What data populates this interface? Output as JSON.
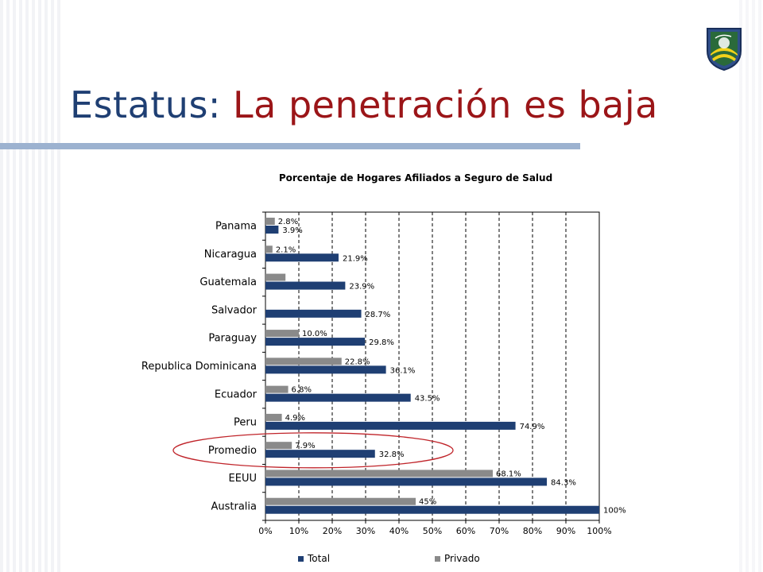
{
  "slide": {
    "title_prefix": "Estatus:",
    "title_main": "La penetración es baja",
    "colors": {
      "title_prefix": "#1f3f73",
      "title_main": "#9b1518",
      "rule": "#9cb2d0",
      "highlight_oval": "#c0242a"
    },
    "logo_icon": "shield-globe-logo"
  },
  "chart_data": {
    "type": "bar",
    "orientation": "horizontal",
    "title": "Porcentaje de Hogares Afiliados a Seguro de Salud",
    "categories": [
      "Panama",
      "Nicaragua",
      "Guatemala",
      "Salvador",
      "Paraguay",
      "Republica Dominicana",
      "Ecuador",
      "Peru",
      "Promedio",
      "EEUU",
      "Australia"
    ],
    "series": [
      {
        "name": "Total",
        "color": "#1f3f73",
        "values": [
          3.9,
          21.9,
          23.9,
          28.7,
          29.8,
          36.1,
          43.5,
          74.9,
          32.8,
          84.3,
          100
        ],
        "labels": [
          "3.9%",
          "21.9%",
          "23.9%",
          "28.7%",
          "29.8%",
          "36.1%",
          "43.5%",
          "74.9%",
          "32.8%",
          "84.3%",
          "100%"
        ]
      },
      {
        "name": "Privado",
        "color": "#8a8a8a",
        "values": [
          2.8,
          2.1,
          6.0,
          0,
          10.0,
          22.8,
          6.8,
          4.9,
          7.9,
          68.1,
          45
        ],
        "labels": [
          "2.8%",
          "2.1%",
          "",
          "",
          "10.0%",
          "22.8%",
          "6.8%",
          "4.9%",
          "7.9%",
          "68.1%",
          "45%"
        ]
      }
    ],
    "xlim": [
      0,
      100
    ],
    "xticks": [
      "0%",
      "10%",
      "20%",
      "30%",
      "40%",
      "50%",
      "60%",
      "70%",
      "80%",
      "90%",
      "100%"
    ],
    "grid": "vertical dashed",
    "legend": "bottom",
    "highlight": "Promedio"
  }
}
